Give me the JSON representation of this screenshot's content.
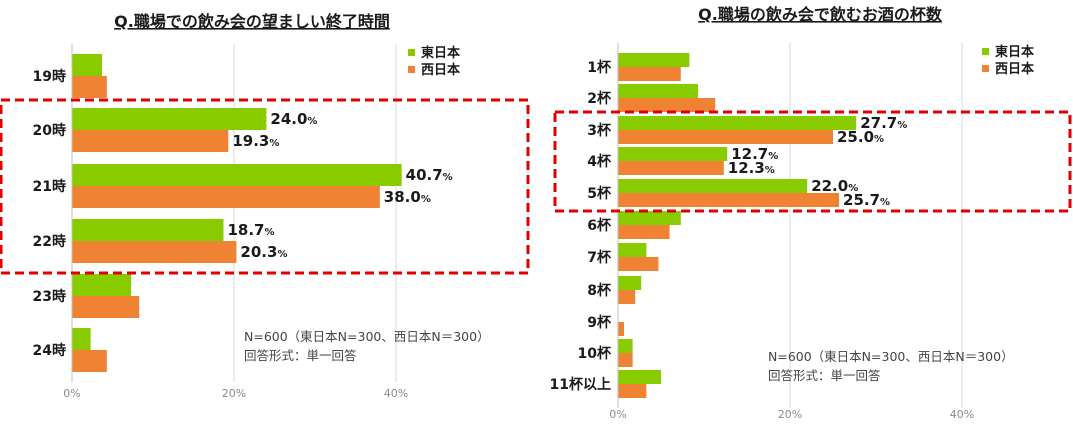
{
  "colors": {
    "east": "#88cc00",
    "west": "#ef8233",
    "highlight": "#e00000",
    "grid": "#d9d9d9"
  },
  "chart_data": [
    {
      "type": "bar",
      "orientation": "horizontal",
      "title": "Q.職場での飲み会の望ましい終了時間",
      "categories": [
        "19時",
        "20時",
        "21時",
        "22時",
        "23時",
        "24時"
      ],
      "series": [
        {
          "name": "東日本",
          "values": [
            3.7,
            24.0,
            40.7,
            18.7,
            7.3,
            2.3
          ]
        },
        {
          "name": "西日本",
          "values": [
            4.3,
            19.3,
            38.0,
            20.3,
            8.3,
            4.3
          ]
        }
      ],
      "labeled_categories": [
        "20時",
        "21時",
        "22時"
      ],
      "highlighted_categories": [
        "20時",
        "21時",
        "22時"
      ],
      "xlim": [
        0,
        60
      ],
      "xticks": [
        "0%",
        "20%",
        "40%"
      ],
      "pct_sign": "%",
      "legend_position": "top-right",
      "notes": [
        "N=600（東日本N=300、西日本N＝300）",
        "回答形式：単一回答"
      ]
    },
    {
      "type": "bar",
      "orientation": "horizontal",
      "title": "Q.職場の飲み会で飲むお酒の杯数",
      "categories": [
        "1杯",
        "2杯",
        "3杯",
        "4杯",
        "5杯",
        "6杯",
        "7杯",
        "8杯",
        "9杯",
        "10杯",
        "11杯以上"
      ],
      "series": [
        {
          "name": "東日本",
          "values": [
            8.3,
            9.3,
            27.7,
            12.7,
            22.0,
            7.3,
            3.3,
            2.7,
            0.0,
            1.7,
            5.0
          ]
        },
        {
          "name": "西日本",
          "values": [
            7.3,
            11.3,
            25.0,
            12.3,
            25.7,
            6.0,
            4.7,
            2.0,
            0.7,
            1.7,
            3.3
          ]
        }
      ],
      "labeled_categories": [
        "3杯",
        "4杯",
        "5杯"
      ],
      "highlighted_categories": [
        "3杯",
        "4杯",
        "5杯"
      ],
      "xlim": [
        0,
        60
      ],
      "xticks": [
        "0%",
        "20%",
        "40%"
      ],
      "pct_sign": "%",
      "legend_position": "top-right",
      "notes": [
        "N=600（東日本N=300、西日本N＝300）",
        "回答形式：単一回答"
      ]
    }
  ]
}
